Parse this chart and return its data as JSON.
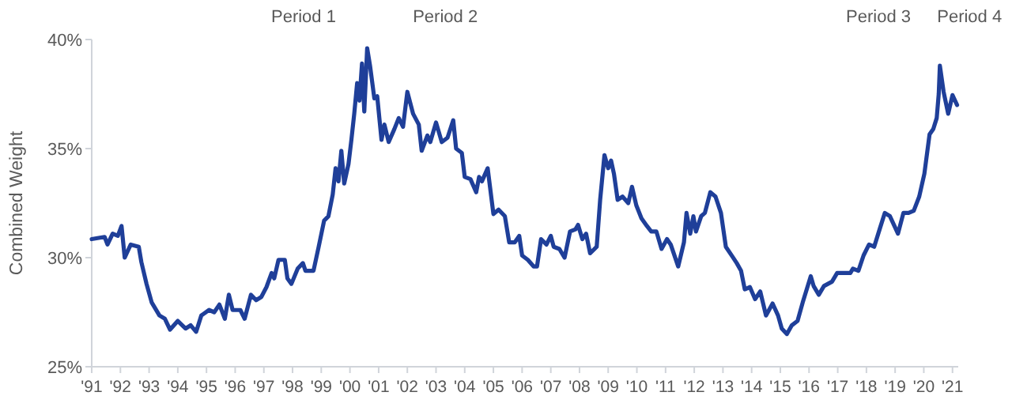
{
  "chart_data": {
    "type": "line",
    "ylabel": "Combined Weight",
    "x": [
      1991.0,
      1991.45,
      1991.55,
      1991.73,
      1991.91,
      1992.04,
      1992.15,
      1992.36,
      1992.64,
      1992.73,
      1992.91,
      1993.09,
      1993.36,
      1993.55,
      1993.73,
      1994.0,
      1994.27,
      1994.45,
      1994.64,
      1994.82,
      1995.09,
      1995.27,
      1995.45,
      1995.64,
      1995.78,
      1995.91,
      1996.18,
      1996.33,
      1996.55,
      1996.73,
      1996.91,
      1997.09,
      1997.27,
      1997.36,
      1997.51,
      1997.73,
      1997.82,
      1997.96,
      1998.18,
      1998.36,
      1998.45,
      1998.73,
      1998.91,
      1999.1,
      1999.25,
      1999.4,
      1999.5,
      1999.6,
      1999.7,
      1999.8,
      1999.95,
      2000.05,
      2000.15,
      2000.25,
      2000.33,
      2000.42,
      2000.5,
      2000.6,
      2000.7,
      2000.85,
      2000.95,
      2001.1,
      2001.2,
      2001.35,
      2001.55,
      2001.7,
      2001.85,
      2002.0,
      2002.2,
      2002.4,
      2002.5,
      2002.7,
      2002.8,
      2003.0,
      2003.2,
      2003.4,
      2003.6,
      2003.7,
      2003.9,
      2004.0,
      2004.2,
      2004.4,
      2004.5,
      2004.6,
      2004.8,
      2005.0,
      2005.18,
      2005.4,
      2005.55,
      2005.74,
      2005.9,
      2006.0,
      2006.2,
      2006.4,
      2006.52,
      2006.66,
      2006.85,
      2007.0,
      2007.1,
      2007.3,
      2007.48,
      2007.67,
      2007.86,
      2007.95,
      2008.1,
      2008.23,
      2008.37,
      2008.6,
      2008.72,
      2008.87,
      2009.0,
      2009.1,
      2009.2,
      2009.33,
      2009.5,
      2009.7,
      2009.83,
      2009.98,
      2010.16,
      2010.35,
      2010.5,
      2010.68,
      2010.86,
      2011.05,
      2011.18,
      2011.44,
      2011.64,
      2011.73,
      2011.86,
      2011.97,
      2012.06,
      2012.24,
      2012.37,
      2012.56,
      2012.74,
      2012.93,
      2013.1,
      2013.33,
      2013.48,
      2013.63,
      2013.76,
      2013.94,
      2014.12,
      2014.3,
      2014.5,
      2014.73,
      2014.92,
      2015.05,
      2015.23,
      2015.4,
      2015.6,
      2015.78,
      2016.06,
      2016.16,
      2016.34,
      2016.52,
      2016.8,
      2016.98,
      2017.17,
      2017.44,
      2017.53,
      2017.72,
      2017.9,
      2018.09,
      2018.27,
      2018.46,
      2018.64,
      2018.82,
      2019.1,
      2019.29,
      2019.47,
      2019.65,
      2019.84,
      2020.02,
      2020.2,
      2020.33,
      2020.45,
      2020.52,
      2020.56,
      2020.69,
      2020.85,
      2021.0,
      2021.16
    ],
    "values": [
      30.85,
      30.95,
      30.6,
      31.1,
      31.0,
      31.45,
      30.0,
      30.6,
      30.5,
      29.8,
      28.8,
      27.95,
      27.35,
      27.2,
      26.7,
      27.1,
      26.75,
      26.9,
      26.6,
      27.35,
      27.6,
      27.5,
      27.85,
      27.2,
      28.3,
      27.6,
      27.6,
      27.2,
      28.3,
      28.05,
      28.2,
      28.65,
      29.3,
      29.05,
      29.9,
      29.9,
      29.05,
      28.8,
      29.5,
      29.75,
      29.4,
      29.4,
      30.5,
      31.7,
      31.9,
      32.9,
      34.1,
      33.5,
      34.9,
      33.4,
      34.3,
      35.4,
      36.6,
      38.0,
      37.2,
      38.9,
      36.7,
      39.6,
      38.8,
      37.3,
      37.4,
      35.4,
      36.1,
      35.3,
      35.9,
      36.4,
      36.0,
      37.6,
      36.6,
      36.1,
      34.9,
      35.6,
      35.3,
      36.2,
      35.3,
      35.5,
      36.3,
      35.0,
      34.8,
      33.7,
      33.6,
      33.0,
      33.7,
      33.5,
      34.1,
      32.0,
      32.2,
      31.9,
      30.7,
      30.7,
      31.0,
      30.1,
      29.9,
      29.6,
      29.6,
      30.85,
      30.6,
      31.0,
      30.5,
      30.4,
      30.0,
      31.2,
      31.3,
      31.5,
      30.85,
      31.1,
      30.2,
      30.5,
      32.65,
      34.7,
      34.1,
      34.45,
      33.85,
      32.65,
      32.8,
      32.5,
      33.25,
      32.4,
      31.8,
      31.45,
      31.2,
      31.2,
      30.4,
      30.85,
      30.6,
      29.6,
      30.7,
      32.05,
      31.1,
      31.9,
      31.2,
      31.9,
      32.05,
      33.0,
      32.8,
      32.05,
      30.5,
      30.05,
      29.75,
      29.4,
      28.55,
      28.65,
      28.1,
      28.45,
      27.35,
      27.9,
      27.35,
      26.75,
      26.5,
      26.9,
      27.1,
      27.95,
      29.15,
      28.7,
      28.3,
      28.7,
      28.9,
      29.3,
      29.3,
      29.3,
      29.5,
      29.4,
      30.1,
      30.6,
      30.5,
      31.3,
      32.05,
      31.9,
      31.1,
      32.05,
      32.05,
      32.15,
      32.8,
      33.85,
      35.65,
      35.9,
      36.4,
      37.5,
      38.8,
      37.6,
      36.6,
      37.45,
      37.0
    ],
    "color": "#1f3f99",
    "xlim": [
      1991,
      2021.2
    ],
    "xticks": [
      {
        "value": 1991,
        "label": "'91"
      },
      {
        "value": 1992,
        "label": "'92"
      },
      {
        "value": 1993,
        "label": "'93"
      },
      {
        "value": 1994,
        "label": "'94"
      },
      {
        "value": 1995,
        "label": "'95"
      },
      {
        "value": 1996,
        "label": "'96"
      },
      {
        "value": 1997,
        "label": "'97"
      },
      {
        "value": 1998,
        "label": "'98"
      },
      {
        "value": 1999,
        "label": "'99"
      },
      {
        "value": 2000,
        "label": "'00"
      },
      {
        "value": 2001,
        "label": "'01"
      },
      {
        "value": 2002,
        "label": "'02"
      },
      {
        "value": 2003,
        "label": "'03"
      },
      {
        "value": 2004,
        "label": "'04"
      },
      {
        "value": 2005,
        "label": "'05"
      },
      {
        "value": 2006,
        "label": "'06"
      },
      {
        "value": 2007,
        "label": "'07"
      },
      {
        "value": 2008,
        "label": "'08"
      },
      {
        "value": 2009,
        "label": "'09"
      },
      {
        "value": 2010,
        "label": "'10"
      },
      {
        "value": 2011,
        "label": "'11"
      },
      {
        "value": 2012,
        "label": "'12"
      },
      {
        "value": 2013,
        "label": "'13"
      },
      {
        "value": 2014,
        "label": "'14"
      },
      {
        "value": 2015,
        "label": "'15"
      },
      {
        "value": 2016,
        "label": "'16"
      },
      {
        "value": 2017,
        "label": "'17"
      },
      {
        "value": 2018,
        "label": "'18"
      },
      {
        "value": 2019,
        "label": "'19"
      },
      {
        "value": 2020,
        "label": "'20"
      },
      {
        "value": 2021,
        "label": "'21"
      }
    ],
    "ylim": [
      25,
      40
    ],
    "yticks": [
      {
        "value": 25,
        "label": "25%"
      },
      {
        "value": 30,
        "label": "30%"
      },
      {
        "value": 35,
        "label": "35%"
      },
      {
        "value": 40,
        "label": "40%"
      }
    ],
    "grid": false,
    "marker": "none",
    "line_style": "solid",
    "annotations": [
      "Period 1",
      "Period 2",
      "Period 3",
      "Period 4"
    ]
  }
}
